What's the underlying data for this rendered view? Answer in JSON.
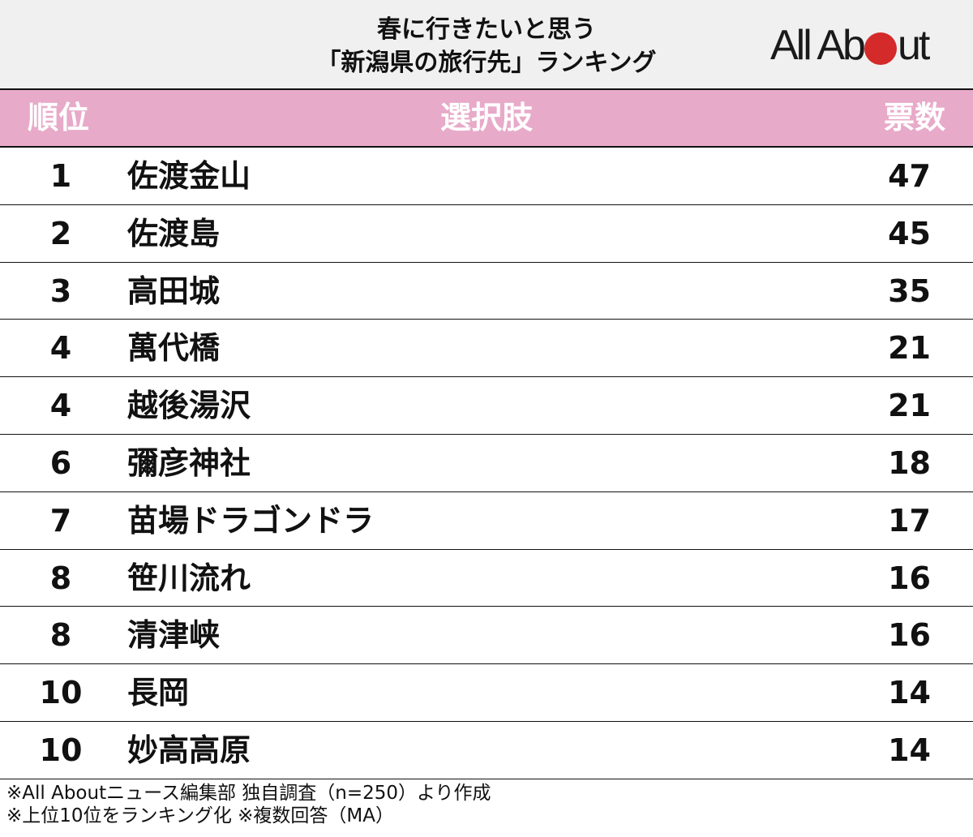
{
  "header": {
    "title_line1": "春に行きたいと思う",
    "title_line2": "「新潟県の旅行先」ランキング",
    "logo_left": "All Ab",
    "logo_right": "ut",
    "logo_dot_color": "#d42a2a"
  },
  "table": {
    "columns": {
      "rank": "順位",
      "choice": "選択肢",
      "votes": "票数"
    },
    "header_color": "#e8aac9",
    "rows": [
      {
        "rank": "1",
        "name": "佐渡金山",
        "votes": "47"
      },
      {
        "rank": "2",
        "name": "佐渡島",
        "votes": "45"
      },
      {
        "rank": "3",
        "name": "高田城",
        "votes": "35"
      },
      {
        "rank": "4",
        "name": "萬代橋",
        "votes": "21"
      },
      {
        "rank": "4",
        "name": "越後湯沢",
        "votes": "21"
      },
      {
        "rank": "6",
        "name": "彌彦神社",
        "votes": "18"
      },
      {
        "rank": "7",
        "name": "苗場ドラゴンドラ",
        "votes": "17"
      },
      {
        "rank": "8",
        "name": "笹川流れ",
        "votes": "16"
      },
      {
        "rank": "8",
        "name": "清津峡",
        "votes": "16"
      },
      {
        "rank": "10",
        "name": "長岡",
        "votes": "14"
      },
      {
        "rank": "10",
        "name": "妙高高原",
        "votes": "14"
      }
    ]
  },
  "notes": {
    "line1": "※All Aboutニュース編集部 独自調査（n=250）より作成",
    "line2": "※上位10位をランキング化 ※複数回答（MA）"
  },
  "chart_data": {
    "type": "table",
    "title": "春に行きたいと思う「新潟県の旅行先」ランキング",
    "columns": [
      "順位",
      "選択肢",
      "票数"
    ],
    "categories": [
      "佐渡金山",
      "佐渡島",
      "高田城",
      "萬代橋",
      "越後湯沢",
      "彌彦神社",
      "苗場ドラゴンドラ",
      "笹川流れ",
      "清津峡",
      "長岡",
      "妙高高原"
    ],
    "ranks": [
      1,
      2,
      3,
      4,
      4,
      6,
      7,
      8,
      8,
      10,
      10
    ],
    "values": [
      47,
      45,
      35,
      21,
      21,
      18,
      17,
      16,
      16,
      14,
      14
    ],
    "notes": [
      "※All Aboutニュース編集部 独自調査（n=250）より作成",
      "※上位10位をランキング化 ※複数回答（MA）"
    ]
  }
}
